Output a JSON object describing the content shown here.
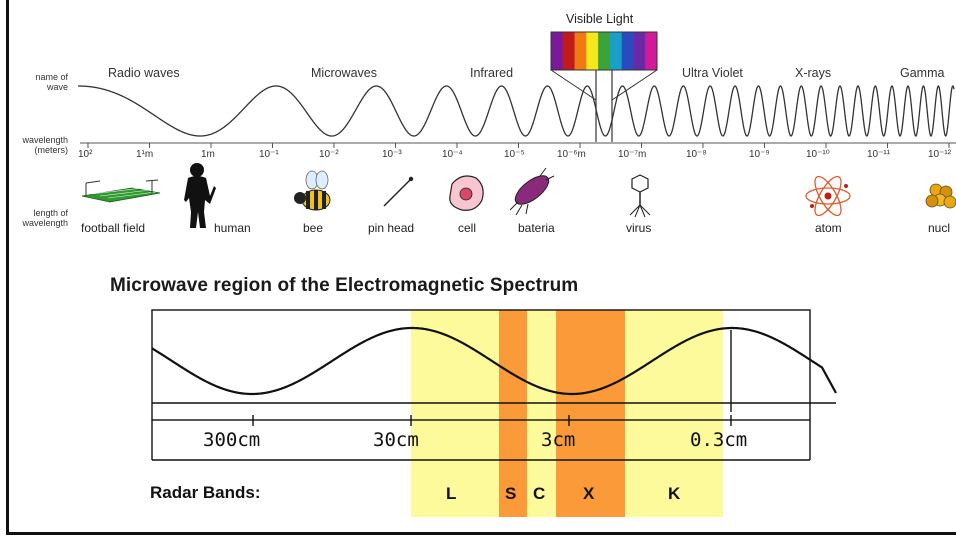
{
  "spectrum": {
    "visible_label": "Visible Light",
    "row_name_label": "name of\nwave",
    "row_wavelength_label": "wavelength\n(meters)",
    "row_length_label": "length of\nwavelength",
    "wave_names": [
      "Radio waves",
      "Microwaves",
      "Infrared",
      "Ultra Violet",
      "X-rays",
      "Gamma"
    ],
    "ticks": [
      "10²",
      "1¹m",
      "1m",
      "10⁻¹",
      "10⁻²",
      "10⁻³",
      "10⁻⁴",
      "10⁻⁵",
      "10⁻⁶m",
      "10⁻⁷m",
      "10⁻⁸",
      "10⁻⁹",
      "10⁻¹⁰",
      "10⁻¹¹",
      "10⁻¹²"
    ],
    "objects": [
      "football field",
      "human",
      "bee",
      "pin head",
      "cell",
      "bateria",
      "virus",
      "atom",
      "nucl"
    ],
    "visible_colors": [
      "#7a1a9a",
      "#c01a1a",
      "#f07a12",
      "#f4e81c",
      "#3aa43a",
      "#1aa0c8",
      "#2a4ac0",
      "#6a2aa8",
      "#d01a9a"
    ]
  },
  "microwave": {
    "title": "Microwave region of the Electromagnetic Spectrum",
    "ruler_labels": [
      "300cm",
      "30cm",
      "3cm",
      "0.3cm"
    ],
    "radar_label": "Radar Bands:",
    "bands": [
      "L",
      "S",
      "C",
      "X",
      "K"
    ],
    "band_colors": {
      "light": "#fdfa9c",
      "orange": "#fb9a38"
    }
  }
}
